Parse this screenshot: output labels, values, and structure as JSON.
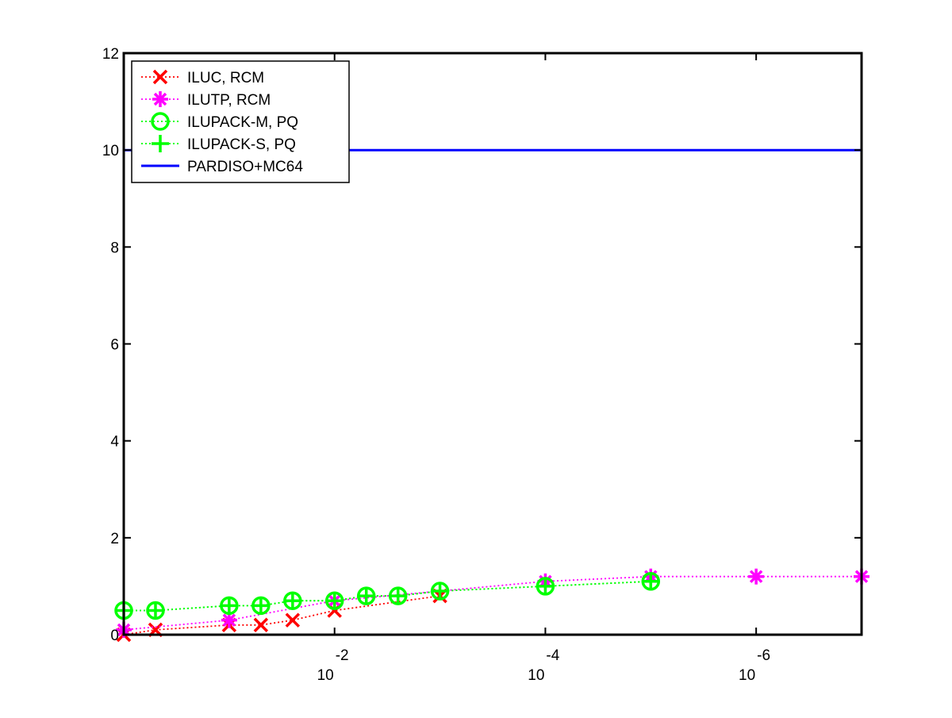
{
  "chart_data": {
    "type": "line",
    "title": "",
    "xlabel": "",
    "ylabel": "",
    "x_scale": "log-reversed",
    "xlim": [
      1,
      1e-07
    ],
    "ylim": [
      0,
      12
    ],
    "grid": false,
    "legend_position": "top-left",
    "y_ticks": [
      "0",
      "2",
      "4",
      "6",
      "8",
      "10",
      "12"
    ],
    "x_ticks": [
      {
        "value": 0.01,
        "base": "10",
        "exponent": "-2"
      },
      {
        "value": 0.0001,
        "base": "10",
        "exponent": "-4"
      },
      {
        "value": 1e-06,
        "base": "10",
        "exponent": "-6"
      }
    ],
    "series": [
      {
        "name": "ILUC, RCM",
        "color": "#ff0000",
        "marker": "x",
        "line_style": "dotted",
        "x": [
          1,
          0.5,
          0.1,
          0.05,
          0.025,
          0.01,
          0.001
        ],
        "y": [
          0.0,
          0.1,
          0.2,
          0.2,
          0.3,
          0.5,
          0.8
        ]
      },
      {
        "name": "ILUTP, RCM",
        "color": "#ff00ff",
        "marker": "star",
        "line_style": "dotted",
        "x": [
          1,
          0.1,
          0.01,
          0.0001,
          1e-05,
          1e-06,
          1e-07
        ],
        "y": [
          0.1,
          0.3,
          0.7,
          1.1,
          1.2,
          1.2,
          1.2
        ]
      },
      {
        "name": "ILUPACK-M, PQ",
        "color": "#00ff00",
        "marker": "circle",
        "line_style": "dotted",
        "x": [
          1,
          0.5,
          0.1,
          0.05,
          0.025,
          0.01,
          0.005,
          0.0025,
          0.001,
          0.0001,
          1e-05
        ],
        "y": [
          0.5,
          0.5,
          0.6,
          0.6,
          0.7,
          0.7,
          0.8,
          0.8,
          0.9,
          1.0,
          1.1
        ]
      },
      {
        "name": "ILUPACK-S, PQ",
        "color": "#00ff00",
        "marker": "plus",
        "line_style": "dotted",
        "x": [
          1,
          0.5,
          0.1,
          0.05,
          0.025,
          0.01,
          0.005,
          0.0025,
          0.001,
          0.0001,
          1e-05
        ],
        "y": [
          0.5,
          0.5,
          0.6,
          0.6,
          0.7,
          0.7,
          0.8,
          0.8,
          0.9,
          1.0,
          1.1
        ]
      },
      {
        "name": "PARDISO+MC64",
        "color": "#0000ff",
        "marker": "none",
        "line_style": "solid",
        "x": [
          1,
          1e-07
        ],
        "y": [
          10,
          10
        ]
      }
    ]
  }
}
